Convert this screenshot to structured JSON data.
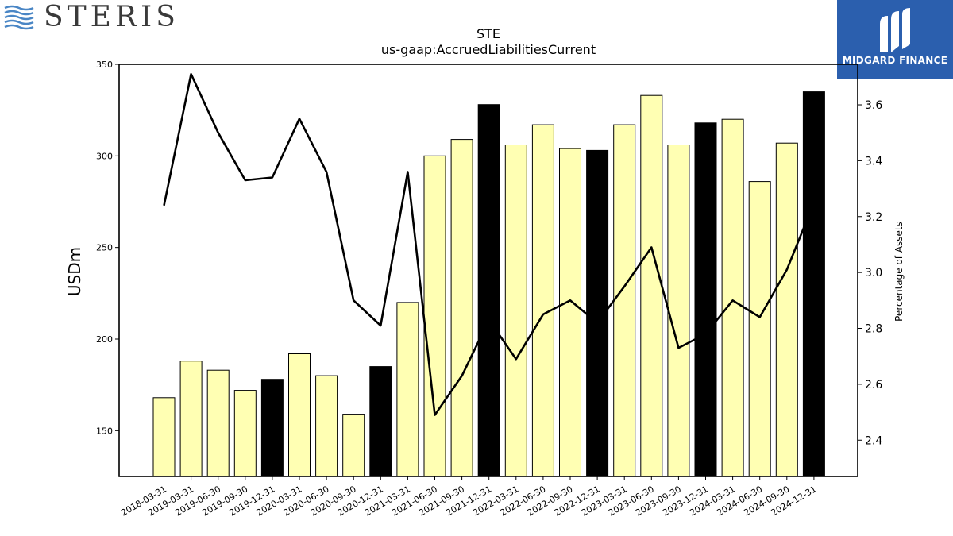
{
  "logos": {
    "steris": "STERIS",
    "midgard": "MIDGARD FINANCE"
  },
  "chart_data": {
    "type": "bar",
    "title": "STE",
    "subtitle": "us-gaap:AccruedLiabilitiesCurrent",
    "ylabel": "USDm",
    "y2label": "Percentage of Assets",
    "ylim": [
      125,
      350
    ],
    "y2lim": [
      2.27,
      3.745
    ],
    "yticks": [
      150,
      200,
      250,
      300,
      350
    ],
    "y2ticks": [
      2.4,
      2.6,
      2.8,
      3.0,
      3.2,
      3.4,
      3.6
    ],
    "colors": {
      "bar": "#ffffb3",
      "bar_highlight": "#000000",
      "line": "#000000"
    },
    "categories": [
      "2018-03-31",
      "2019-03-31",
      "2019-06-30",
      "2019-09-30",
      "2019-12-31",
      "2020-03-31",
      "2020-06-30",
      "2020-09-30",
      "2020-12-31",
      "2021-03-31",
      "2021-06-30",
      "2021-09-30",
      "2021-12-31",
      "2022-03-31",
      "2022-06-30",
      "2022-09-30",
      "2022-12-31",
      "2023-03-31",
      "2023-06-30",
      "2023-09-30",
      "2023-12-31",
      "2024-03-31",
      "2024-06-30",
      "2024-09-30",
      "2024-12-31"
    ],
    "series": [
      {
        "type": "bar",
        "values": [
          168,
          188,
          183,
          172,
          178,
          192,
          180,
          159,
          185,
          220,
          300,
          309,
          328,
          306,
          317,
          304,
          303,
          317,
          333,
          306,
          318,
          320,
          286,
          307,
          335
        ],
        "highlight": [
          false,
          false,
          false,
          false,
          true,
          false,
          false,
          false,
          true,
          false,
          false,
          false,
          true,
          false,
          false,
          false,
          true,
          false,
          false,
          false,
          true,
          false,
          false,
          false,
          true
        ]
      },
      {
        "type": "line",
        "axis": "right",
        "values": [
          3.24,
          3.71,
          3.5,
          3.33,
          3.34,
          3.55,
          3.36,
          2.9,
          2.81,
          3.36,
          2.49,
          2.63,
          2.83,
          2.69,
          2.85,
          2.9,
          2.82,
          2.95,
          3.09,
          2.73,
          2.78,
          2.9,
          2.84,
          3.01,
          3.25
        ]
      }
    ]
  }
}
